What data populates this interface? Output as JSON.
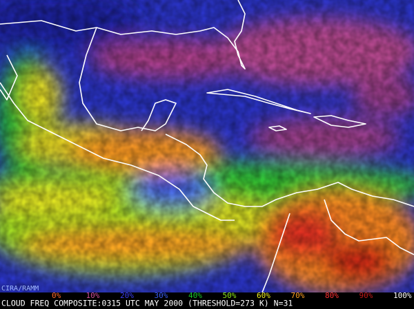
{
  "credit": "CIRA/RAMM",
  "legend": [
    {
      "label": "0%",
      "color": "#ff6a2a"
    },
    {
      "label": "10%",
      "color": "#d0509a"
    },
    {
      "label": "20%",
      "color": "#3a3cf0"
    },
    {
      "label": "30%",
      "color": "#3a5cf0"
    },
    {
      "label": "40%",
      "color": "#18c828"
    },
    {
      "label": "50%",
      "color": "#8ee818"
    },
    {
      "label": "60%",
      "color": "#f0f020"
    },
    {
      "label": "70%",
      "color": "#ffa020"
    },
    {
      "label": "80%",
      "color": "#ff3030"
    },
    {
      "label": "90%",
      "color": "#c01818"
    },
    {
      "label": "100%",
      "color": "#ffffff"
    }
  ],
  "caption": "CLOUD FREQ COMPOSITE:0315 UTC MAY 2000 (THRESHOLD=273 K) N=31"
}
